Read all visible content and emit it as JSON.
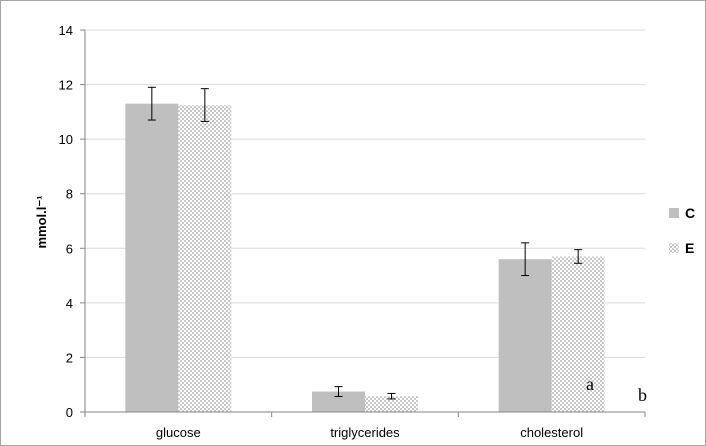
{
  "chart_data": {
    "type": "bar",
    "title": "",
    "xlabel": "",
    "ylabel": "mmol.l⁻¹",
    "ylim": [
      0,
      14
    ],
    "yticks": [
      0,
      2,
      4,
      6,
      8,
      10,
      12,
      14
    ],
    "categories": [
      "glucose",
      "triglycerides",
      "cholesterol"
    ],
    "series": [
      {
        "name": "C",
        "values": [
          11.3,
          0.75,
          5.6
        ],
        "errors": [
          0.6,
          0.18,
          0.6
        ],
        "color": "#bfbfbf",
        "pattern": "solid"
      },
      {
        "name": "E",
        "values": [
          11.25,
          0.58,
          5.7
        ],
        "errors": [
          0.6,
          0.1,
          0.25
        ],
        "color": "#d9d9d9",
        "pattern": "checkered"
      }
    ],
    "grid": true,
    "legend": "right",
    "annotations": [
      "a",
      "b"
    ]
  }
}
